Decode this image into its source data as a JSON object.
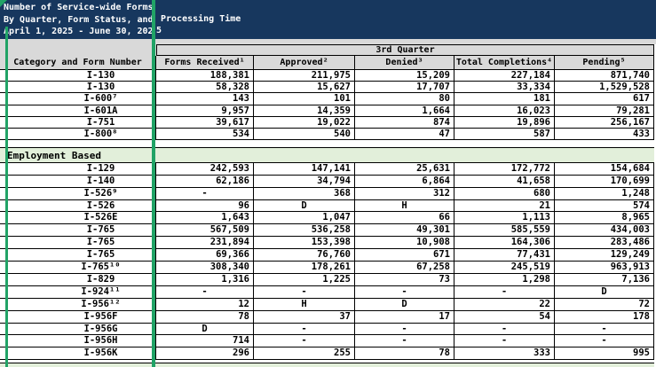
{
  "title": {
    "line1": "Number of Service-wide Forms",
    "line2": "By Quarter, Form Status, and Processing Time",
    "line2_continuation_right_pane": "Processing Time",
    "line3": "April 1, 2025 - June 30, 2025",
    "line3_continuation_right_pane": "5"
  },
  "table": {
    "quarter_header": "3rd Quarter",
    "category_header": "Category and Form Number",
    "columns": [
      "Forms Received¹",
      "Approved²",
      "Denied³",
      "Total Completions⁴",
      "Pending⁵"
    ],
    "sections": [
      {
        "label": null,
        "rows": [
          [
            "I-130",
            "188,381",
            "211,975",
            "15,209",
            "227,184",
            "871,740"
          ],
          [
            "I-130",
            "58,328",
            "15,627",
            "17,707",
            "33,334",
            "1,529,528"
          ],
          [
            "I-600⁷",
            "143",
            "101",
            "80",
            "181",
            "617"
          ],
          [
            "I-601A",
            "9,957",
            "14,359",
            "1,664",
            "16,023",
            "79,281"
          ],
          [
            "I-751",
            "39,617",
            "19,022",
            "874",
            "19,896",
            "256,167"
          ],
          [
            "I-800⁸",
            "534",
            "540",
            "47",
            "587",
            "433"
          ]
        ]
      },
      {
        "label": "Employment Based",
        "rows": [
          [
            "I-129",
            "242,593",
            "147,141",
            "25,631",
            "172,772",
            "154,684"
          ],
          [
            "I-140",
            "62,186",
            "34,794",
            "6,864",
            "41,658",
            "170,699"
          ],
          [
            "I-526⁹",
            "-",
            "368",
            "312",
            "680",
            "1,248"
          ],
          [
            "I-526",
            "96",
            "D",
            "H",
            "21",
            "574"
          ],
          [
            "I-526E",
            "1,643",
            "1,047",
            "66",
            "1,113",
            "8,965"
          ],
          [
            "I-765",
            "567,509",
            "536,258",
            "49,301",
            "585,559",
            "434,003"
          ],
          [
            "I-765",
            "231,894",
            "153,398",
            "10,908",
            "164,306",
            "283,486"
          ],
          [
            "I-765",
            "69,366",
            "76,760",
            "671",
            "77,431",
            "129,249"
          ],
          [
            "I-765¹⁰",
            "308,340",
            "178,261",
            "67,258",
            "245,519",
            "963,913"
          ],
          [
            "I-829",
            "1,316",
            "1,225",
            "73",
            "1,298",
            "7,136"
          ],
          [
            "I-924¹¹",
            "-",
            "-",
            "-",
            "-",
            "D"
          ],
          [
            "I-956¹²",
            "12",
            "H",
            "D",
            "22",
            "72"
          ],
          [
            "I-956F",
            "78",
            "37",
            "17",
            "54",
            "178"
          ],
          [
            "I-956G",
            "D",
            "-",
            "-",
            "-",
            "-"
          ],
          [
            "I-956H",
            "714",
            "-",
            "-",
            "-",
            "-"
          ],
          [
            "I-956K",
            "296",
            "255",
            "78",
            "333",
            "995"
          ]
        ]
      },
      {
        "label": "",
        "rows": []
      }
    ]
  },
  "colors": {
    "title_background": "#17375E",
    "header_background": "#D9D9D9",
    "section_row_background": "#E2EFDA",
    "pane_divider_green": "#21A366",
    "grid_border": "#000000"
  }
}
